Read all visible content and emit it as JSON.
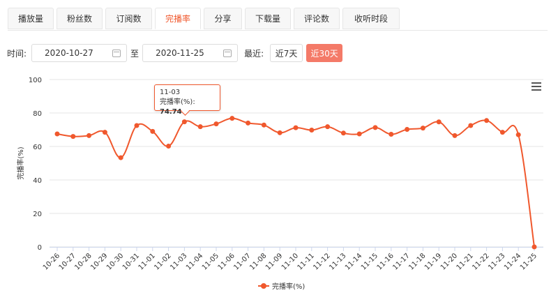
{
  "tabs": [
    {
      "label": "播放量",
      "active": false
    },
    {
      "label": "粉丝数",
      "active": false
    },
    {
      "label": "订阅数",
      "active": false
    },
    {
      "label": "完播率",
      "active": true
    },
    {
      "label": "分享",
      "active": false
    },
    {
      "label": "下载量",
      "active": false
    },
    {
      "label": "评论数",
      "active": false
    },
    {
      "label": "收听时段",
      "active": false
    }
  ],
  "filter": {
    "time_label": "时间:",
    "start_date": "2020-10-27",
    "to_label": "至",
    "end_date": "2020-11-25",
    "recent_label": "最近:",
    "btn_7": "近7天",
    "btn_30": "近30天",
    "active_range": "近30天"
  },
  "tooltip": {
    "date": "11-03",
    "series": "完播率(%)",
    "value": "74.74"
  },
  "colors": {
    "accent": "#f0582d",
    "active_button": "#f47a68"
  },
  "chart_data": {
    "type": "line",
    "ylabel": "完播率(%)",
    "ylim": [
      0,
      100
    ],
    "yticks": [
      0,
      20,
      40,
      60,
      80,
      100
    ],
    "grid": true,
    "legend": "bottom-center",
    "categories": [
      "10-26",
      "10-27",
      "10-28",
      "10-29",
      "10-30",
      "10-31",
      "11-01",
      "11-02",
      "11-03",
      "11-04",
      "11-05",
      "11-06",
      "11-07",
      "11-08",
      "11-09",
      "11-10",
      "11-11",
      "11-12",
      "11-13",
      "11-14",
      "11-15",
      "11-16",
      "11-17",
      "11-18",
      "11-19",
      "11-20",
      "11-21",
      "11-22",
      "11-23",
      "11-24",
      "11-25"
    ],
    "series": [
      {
        "name": "完播率(%)",
        "color": "#f0582d",
        "values": [
          67.5,
          66.0,
          66.5,
          68.5,
          53.3,
          72.5,
          69.0,
          60.2,
          74.74,
          71.8,
          73.5,
          76.8,
          74.0,
          72.8,
          68.2,
          71.2,
          69.8,
          71.8,
          68.0,
          67.5,
          71.3,
          67.3,
          70.2,
          71.0,
          74.7,
          66.5,
          72.5,
          75.5,
          68.5,
          67.0,
          0
        ]
      }
    ]
  }
}
